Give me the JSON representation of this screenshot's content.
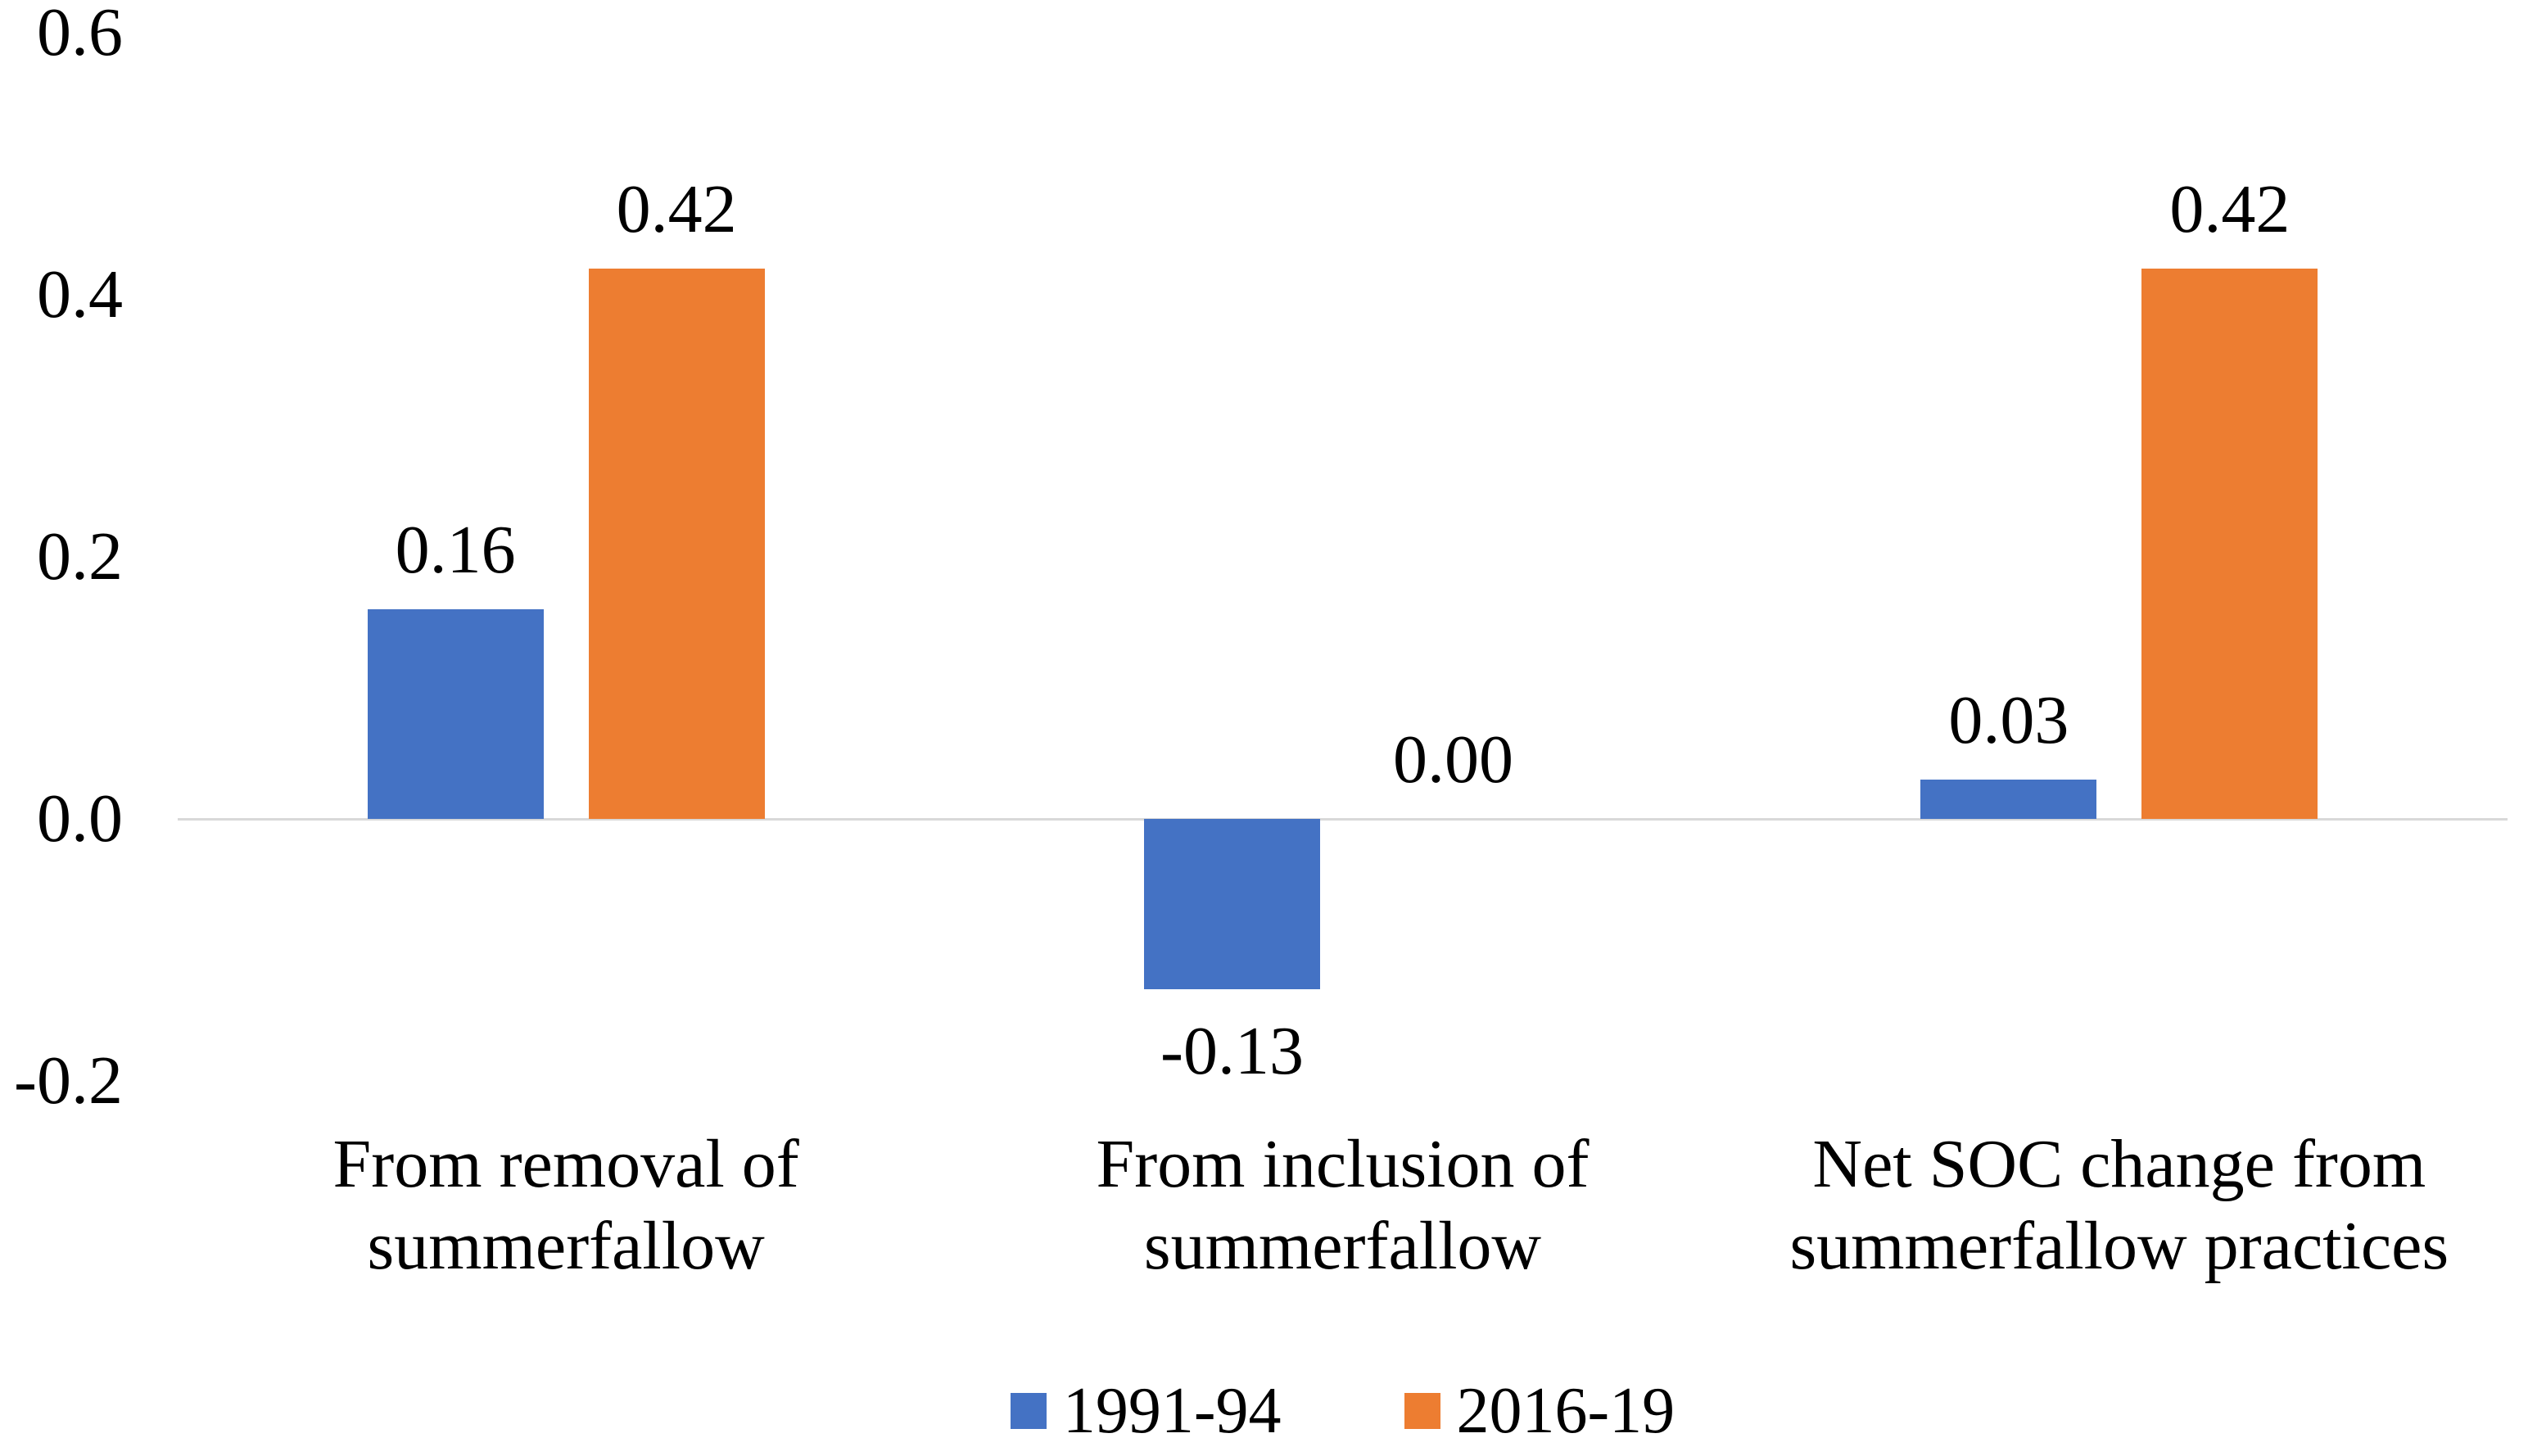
{
  "chart_data": {
    "type": "bar",
    "categories": [
      "From removal of summerfallow",
      "From inclusion of summerfallow",
      "Net SOC change from summerfallow practices"
    ],
    "category_lines": [
      [
        "From removal of",
        "summerfallow"
      ],
      [
        "From inclusion of",
        "summerfallow"
      ],
      [
        "Net SOC change from",
        "summerfallow practices"
      ]
    ],
    "series": [
      {
        "name": "1991-94",
        "color": "#4472C4",
        "values": [
          0.16,
          -0.13,
          0.03
        ],
        "data_labels": [
          "0.16",
          "-0.13",
          "0.03"
        ]
      },
      {
        "name": "2016-19",
        "color": "#ED7D31",
        "values": [
          0.42,
          0.0,
          0.42
        ],
        "data_labels": [
          "0.42",
          "0.00",
          "0.42"
        ]
      }
    ],
    "y_axis": {
      "min": -0.2,
      "max": 0.6,
      "ticks": [
        0.6,
        0.4,
        0.2,
        0.0,
        -0.2
      ],
      "tick_labels": [
        "0.6",
        "0.4",
        "0.2",
        "0.0",
        "-0.2"
      ]
    },
    "grid": false,
    "legend_position": "bottom",
    "axis_line_color": "#D9D9D9",
    "bar_label_color": "#000000",
    "background": "#FFFFFF"
  }
}
